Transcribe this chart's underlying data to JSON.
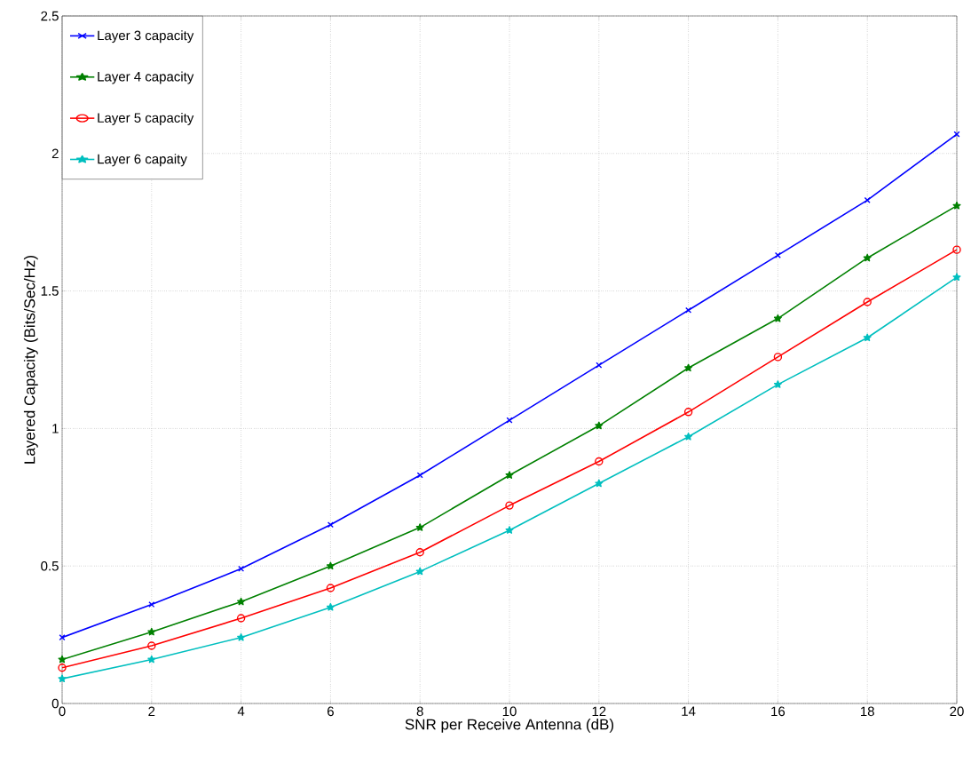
{
  "chart_data": {
    "type": "line",
    "xlabel": "SNR per Receive Antenna (dB)",
    "ylabel": "Layered Capacity  (Bits/Sec/Hz)",
    "x": [
      0,
      2,
      4,
      6,
      8,
      10,
      12,
      14,
      16,
      18,
      20
    ],
    "series": [
      {
        "name": "Layer 3 capacity",
        "color": "#0000ff",
        "marker": "cross",
        "values": [
          0.24,
          0.36,
          0.49,
          0.65,
          0.83,
          1.03,
          1.23,
          1.43,
          1.63,
          1.83,
          2.07
        ]
      },
      {
        "name": "Layer 4 capacity",
        "color": "#008000",
        "marker": "star",
        "values": [
          0.16,
          0.26,
          0.37,
          0.5,
          0.64,
          0.83,
          1.01,
          1.22,
          1.4,
          1.62,
          1.81
        ]
      },
      {
        "name": "Layer 5 capacity",
        "color": "#ff0000",
        "marker": "circle",
        "values": [
          0.13,
          0.21,
          0.31,
          0.42,
          0.55,
          0.72,
          0.88,
          1.06,
          1.26,
          1.46,
          1.65
        ]
      },
      {
        "name": "Layer 6 capaity",
        "color": "#00bfbf",
        "marker": "star",
        "values": [
          0.09,
          0.16,
          0.24,
          0.35,
          0.48,
          0.63,
          0.8,
          0.97,
          1.16,
          1.33,
          1.55
        ]
      }
    ],
    "xlim": [
      0,
      20
    ],
    "ylim": [
      0,
      2.5
    ],
    "xticks": [
      0,
      2,
      4,
      6,
      8,
      10,
      12,
      14,
      16,
      18,
      20
    ],
    "yticks": [
      0,
      0.5,
      1,
      1.5,
      2,
      2.5
    ],
    "grid": true,
    "legend": "top left",
    "line_style": "solid"
  }
}
